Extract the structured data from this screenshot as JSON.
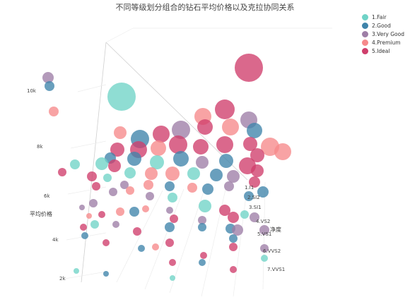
{
  "chart_data": {
    "type": "scatter",
    "title": "不同等级划分组合的钻石平均价格以及克拉协同关系",
    "zlabel": "平均价格",
    "ylabel": "净度",
    "z_ticks": [
      "2k",
      "4k",
      "6k",
      "8k",
      "10k"
    ],
    "clarity_ticks": [
      "1.I1",
      "2.SI2",
      "3.SI1",
      "4.VS2",
      "5.VS1",
      "6.VVS2",
      "7.VVS1"
    ],
    "legend_position": "top-right",
    "series": [
      {
        "name": "1.Fair",
        "color": "#6fd3c7"
      },
      {
        "name": "2.Good",
        "color": "#3f84aa"
      },
      {
        "name": "3.Very Good",
        "color": "#9e7ea6"
      },
      {
        "name": "4.Premium",
        "color": "#f6898b"
      },
      {
        "name": "5.Ideal",
        "color": "#cf3e6b"
      }
    ]
  }
}
